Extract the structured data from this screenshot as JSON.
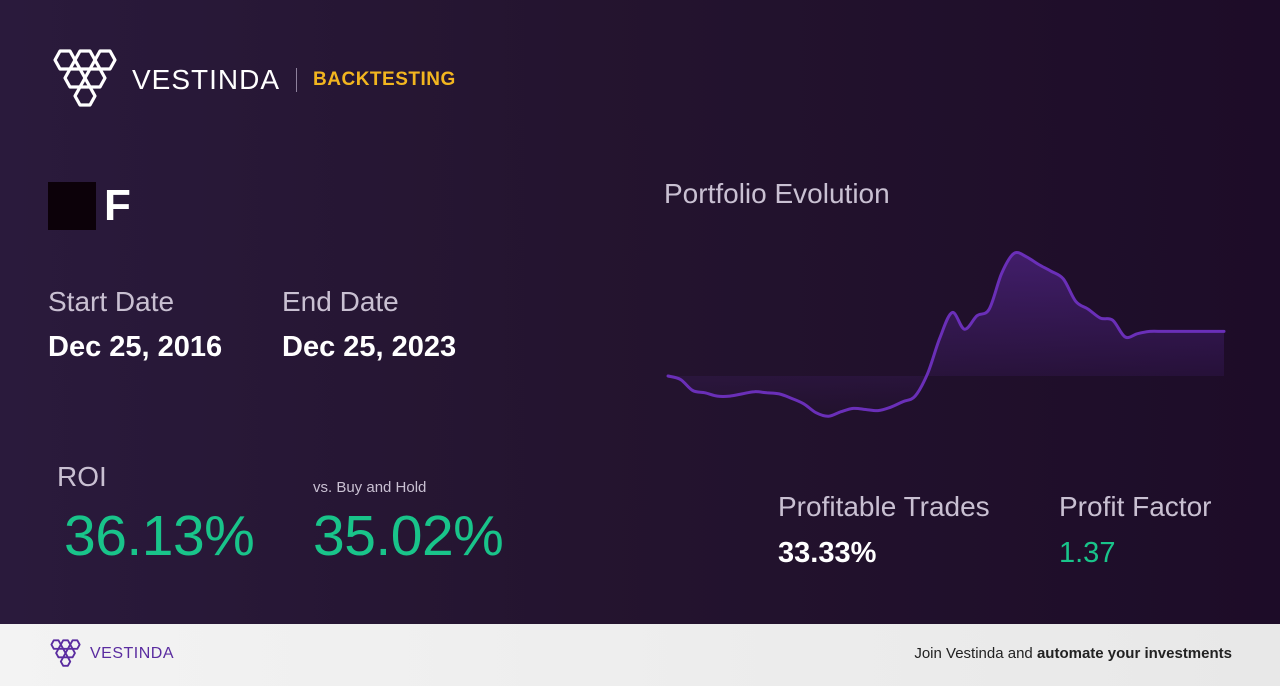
{
  "header": {
    "brand": "VESTINDA",
    "section": "BACKTESTING"
  },
  "ticker": {
    "symbol": "F"
  },
  "dates": {
    "start_label": "Start Date",
    "start_value": "Dec 25, 2016",
    "end_label": "End Date",
    "end_value": "Dec 25, 2023"
  },
  "roi": {
    "label": "ROI",
    "value": "36.13%",
    "vs_label": "vs. Buy and Hold",
    "vs_value": "35.02%"
  },
  "stats": {
    "profitable_trades_label": "Profitable Trades",
    "profitable_trades_value": "33.33%",
    "profit_factor_label": "Profit Factor",
    "profit_factor_value": "1.37"
  },
  "footer": {
    "brand": "VESTINDA",
    "cta_prefix": "Join Vestinda and ",
    "cta_bold": "automate your investments"
  },
  "colors": {
    "accent_yellow": "#f2b51f",
    "positive_green": "#19c48a",
    "line_purple": "#6a2fb8"
  },
  "chart_data": {
    "type": "line",
    "title": "Portfolio Evolution",
    "xlabel": "",
    "ylabel": "",
    "grid": false,
    "x": [
      0,
      1,
      2,
      3,
      4,
      5,
      6,
      7,
      8,
      9,
      10,
      11,
      12,
      13,
      14,
      15,
      16,
      17,
      18,
      19,
      20,
      21,
      22,
      23,
      24,
      25,
      26,
      27,
      28,
      29,
      30,
      31,
      32,
      33,
      34,
      35,
      36,
      37,
      38,
      39,
      40,
      41,
      42,
      43,
      44,
      45
    ],
    "values": [
      28,
      25,
      15,
      13,
      10,
      10,
      12,
      14,
      13,
      12,
      8,
      3,
      -5,
      -8,
      -4,
      -1,
      -2,
      -3,
      0,
      5,
      10,
      30,
      62,
      85,
      70,
      82,
      88,
      120,
      138,
      135,
      128,
      122,
      115,
      95,
      88,
      80,
      78,
      63,
      66,
      68,
      68,
      68,
      68,
      68,
      68,
      68
    ],
    "ylim": [
      -15,
      150
    ]
  }
}
